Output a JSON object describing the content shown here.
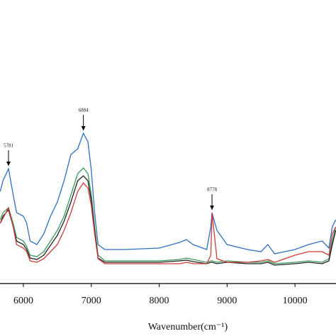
{
  "chart_data": {
    "type": "line",
    "x_label": "Wavenumber(cm⁻¹)",
    "x": [
      5660,
      5700,
      5781,
      5850,
      5900,
      6000,
      6050,
      6100,
      6200,
      6300,
      6400,
      6500,
      6600,
      6700,
      6800,
      6884,
      6950,
      7000,
      7050,
      7100,
      7200,
      7500,
      8000,
      8300,
      8400,
      8500,
      8700,
      8760,
      8778,
      8850,
      9000,
      9300,
      9500,
      9600,
      9700,
      10000,
      10200,
      10400,
      10500,
      10550,
      10600
    ],
    "series": [
      {
        "color": "#2f6fc0",
        "values": [
          130,
          145,
          162,
          125,
          100,
          95,
          85,
          60,
          55,
          70,
          95,
          115,
          145,
          182,
          190,
          212,
          200,
          160,
          100,
          55,
          48,
          48,
          50,
          58,
          62,
          55,
          48,
          80,
          100,
          75,
          55,
          48,
          45,
          55,
          42,
          48,
          55,
          60,
          50,
          80,
          90
        ]
      },
      {
        "color": "#3a9a5a",
        "values": [
          90,
          100,
          107,
          85,
          65,
          60,
          52,
          40,
          38,
          45,
          60,
          75,
          95,
          125,
          155,
          163,
          155,
          125,
          80,
          40,
          32,
          32,
          32,
          34,
          36,
          34,
          30,
          32,
          32,
          30,
          32,
          30,
          30,
          32,
          28,
          30,
          32,
          30,
          35,
          60,
          80
        ]
      },
      {
        "color": "#222222",
        "values": [
          85,
          95,
          104,
          80,
          60,
          55,
          48,
          36,
          34,
          40,
          54,
          68,
          88,
          115,
          145,
          152,
          145,
          118,
          75,
          36,
          30,
          30,
          30,
          32,
          33,
          31,
          28,
          30,
          30,
          28,
          30,
          28,
          28,
          30,
          26,
          28,
          30,
          28,
          32,
          55,
          75
        ]
      },
      {
        "color": "#d03a3a",
        "values": [
          85,
          92,
          107,
          80,
          55,
          50,
          45,
          32,
          30,
          35,
          45,
          55,
          75,
          100,
          130,
          142,
          135,
          110,
          70,
          35,
          28,
          28,
          28,
          28,
          30,
          28,
          28,
          40,
          100,
          35,
          30,
          30,
          32,
          34,
          30,
          40,
          45,
          45,
          40,
          70,
          80
        ]
      }
    ],
    "annotations": [
      {
        "label": "5781",
        "x": 5781
      },
      {
        "label": "6884",
        "x": 6884
      },
      {
        "label": "8778",
        "x": 8778
      }
    ],
    "xlim": [
      5656,
      10604
    ],
    "ylim": [
      0,
      400
    ],
    "xticks": [
      6000,
      7000,
      8000,
      9000,
      10000
    ]
  }
}
